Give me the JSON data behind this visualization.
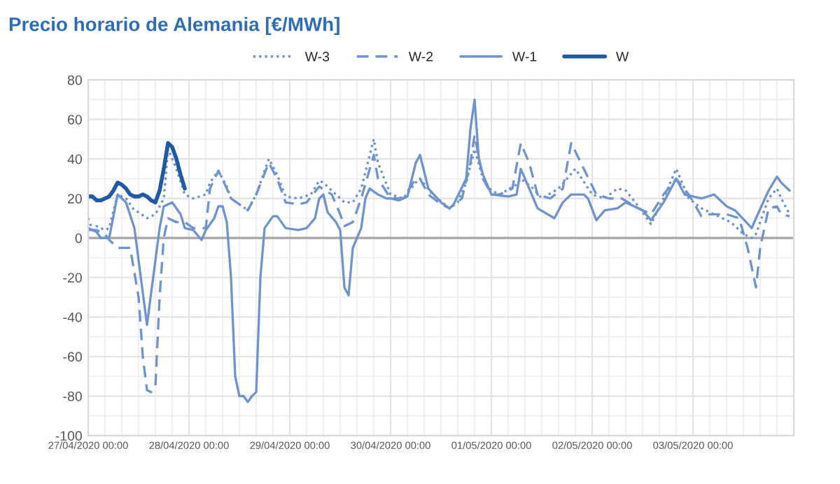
{
  "chart_data": {
    "type": "line",
    "title": "Precio horario de Alemania [€/MWh]",
    "series": [
      {
        "name": "W-3",
        "color": "#6f93cc",
        "line_style": "dotted",
        "x": [
          "2020-04-27T00:00",
          "2020-04-27T01:00",
          "2020-04-27T02:00",
          "2020-04-27T04:00",
          "2020-04-27T05:00",
          "2020-04-27T07:00",
          "2020-04-27T09:00",
          "2020-04-27T11:00",
          "2020-04-27T12:00",
          "2020-04-27T14:00",
          "2020-04-27T16:00",
          "2020-04-27T18:00",
          "2020-04-27T19:00",
          "2020-04-27T21:00",
          "2020-04-27T23:00",
          "2020-04-28T01:00",
          "2020-04-28T04:00",
          "2020-04-28T05:00",
          "2020-04-28T07:00",
          "2020-04-28T09:00",
          "2020-04-28T10:00",
          "2020-04-28T14:00",
          "2020-04-28T16:00",
          "2020-04-28T19:00",
          "2020-04-28T21:00",
          "2020-04-28T23:00",
          "2020-04-29T02:00",
          "2020-04-29T05:00",
          "2020-04-29T07:00",
          "2020-04-29T08:00",
          "2020-04-29T11:00",
          "2020-04-29T13:00",
          "2020-04-29T15:00",
          "2020-04-29T17:00",
          "2020-04-29T20:00",
          "2020-04-29T21:00",
          "2020-04-30T00:00",
          "2020-04-30T03:00",
          "2020-04-30T06:00",
          "2020-04-30T07:00",
          "2020-04-30T10:00",
          "2020-04-30T14:00",
          "2020-04-30T16:00",
          "2020-04-30T18:00",
          "2020-04-30T20:00",
          "2020-04-30T22:00",
          "2020-05-01T00:00",
          "2020-05-01T02:00",
          "2020-05-01T06:00",
          "2020-05-01T07:00",
          "2020-05-01T10:00",
          "2020-05-01T12:00",
          "2020-05-01T16:00",
          "2020-05-01T20:00",
          "2020-05-02T00:00",
          "2020-05-02T03:00",
          "2020-05-02T06:00",
          "2020-05-02T08:00",
          "2020-05-02T11:00",
          "2020-05-02T14:00",
          "2020-05-02T17:00",
          "2020-05-02T20:00",
          "2020-05-02T23:00",
          "2020-05-03T02:00",
          "2020-05-03T05:00",
          "2020-05-03T09:00",
          "2020-05-03T12:00",
          "2020-05-03T14:00",
          "2020-05-03T15:00",
          "2020-05-03T18:00",
          "2020-05-03T20:00",
          "2020-05-03T21:00",
          "2020-05-03T23:00"
        ],
        "values": [
          10,
          4,
          6,
          4,
          5,
          22,
          20,
          14,
          13,
          10,
          12,
          20,
          45,
          35,
          22,
          20,
          22,
          28,
          34,
          26,
          20,
          14,
          22,
          40,
          32,
          21,
          20,
          22,
          29,
          28,
          22,
          18,
          18,
          25,
          50,
          38,
          22,
          20,
          28,
          30,
          22,
          15,
          18,
          28,
          45,
          30,
          24,
          22,
          27,
          30,
          25,
          20,
          25,
          35,
          22,
          20,
          25,
          24,
          16,
          7,
          20,
          35,
          20,
          15,
          12,
          8,
          2,
          0,
          2,
          20,
          25,
          20,
          12
        ]
      },
      {
        "name": "W-2",
        "color": "#6f93cc",
        "line_style": "dashed",
        "x": [
          "2020-04-27T00:00",
          "2020-04-27T02:00",
          "2020-04-27T04:00",
          "2020-04-27T05:00",
          "2020-04-27T07:00",
          "2020-04-27T10:00",
          "2020-04-27T12:00",
          "2020-04-27T13:00",
          "2020-04-27T14:00",
          "2020-04-27T15:00",
          "2020-04-27T16:00",
          "2020-04-27T17:00",
          "2020-04-27T18:00",
          "2020-04-27T19:00",
          "2020-04-27T21:00",
          "2020-04-27T23:00",
          "2020-04-28T01:00",
          "2020-04-28T04:00",
          "2020-04-28T05:00",
          "2020-04-28T07:00",
          "2020-04-28T09:00",
          "2020-04-28T10:00",
          "2020-04-28T14:00",
          "2020-04-28T16:00",
          "2020-04-28T19:00",
          "2020-04-28T21:00",
          "2020-04-28T23:00",
          "2020-04-29T02:00",
          "2020-04-29T04:00",
          "2020-04-29T07:00",
          "2020-04-29T10:00",
          "2020-04-29T12:00",
          "2020-04-29T13:00",
          "2020-04-29T15:00",
          "2020-04-29T17:00",
          "2020-04-29T20:00",
          "2020-04-29T21:00",
          "2020-04-30T00:00",
          "2020-04-30T03:00",
          "2020-04-30T06:00",
          "2020-04-30T07:00",
          "2020-04-30T09:00",
          "2020-04-30T12:00",
          "2020-04-30T14:00",
          "2020-04-30T17:00",
          "2020-04-30T19:00",
          "2020-04-30T20:00",
          "2020-04-30T22:00",
          "2020-05-01T00:00",
          "2020-05-01T02:00",
          "2020-05-01T05:00",
          "2020-05-01T07:00",
          "2020-05-01T09:00",
          "2020-05-01T11:00",
          "2020-05-01T14:00",
          "2020-05-01T17:00",
          "2020-05-01T19:00",
          "2020-05-01T22:00",
          "2020-05-02T01:00",
          "2020-05-02T04:00",
          "2020-05-02T07:00",
          "2020-05-02T11:00",
          "2020-05-02T14:00",
          "2020-05-02T17:00",
          "2020-05-02T20:00",
          "2020-05-02T23:00",
          "2020-05-03T02:00",
          "2020-05-03T04:00",
          "2020-05-03T08:00",
          "2020-05-03T11:00",
          "2020-05-03T13:00",
          "2020-05-03T15:00",
          "2020-05-03T16:00",
          "2020-05-03T18:00",
          "2020-05-03T20:00",
          "2020-05-03T21:00",
          "2020-05-03T23:00"
        ],
        "values": [
          4,
          4,
          2,
          -1,
          -5,
          -5,
          -30,
          -60,
          -77,
          -78,
          -75,
          -30,
          0,
          10,
          8,
          8,
          5,
          5,
          25,
          34,
          25,
          20,
          14,
          22,
          38,
          30,
          18,
          17,
          18,
          26,
          22,
          12,
          6,
          8,
          20,
          42,
          30,
          20,
          20,
          30,
          30,
          22,
          17,
          15,
          20,
          38,
          52,
          30,
          22,
          22,
          25,
          48,
          38,
          22,
          20,
          25,
          48,
          35,
          22,
          20,
          20,
          15,
          12,
          22,
          30,
          22,
          11,
          12,
          12,
          10,
          -5,
          -25,
          -5,
          15,
          16,
          12,
          11
        ]
      },
      {
        "name": "W-1",
        "color": "#6f93cc",
        "line_style": "solid",
        "x": [
          "2020-04-27T00:00",
          "2020-04-27T02:00",
          "2020-04-27T03:00",
          "2020-04-27T05:00",
          "2020-04-27T07:00",
          "2020-04-27T09:00",
          "2020-04-27T11:00",
          "2020-04-27T14:00",
          "2020-04-27T17:00",
          "2020-04-27T18:00",
          "2020-04-27T20:00",
          "2020-04-27T22:00",
          "2020-04-27T23:00",
          "2020-04-28T01:00",
          "2020-04-28T03:00",
          "2020-04-28T04:00",
          "2020-04-28T06:00",
          "2020-04-28T07:00",
          "2020-04-28T08:00",
          "2020-04-28T09:00",
          "2020-04-28T10:00",
          "2020-04-28T11:00",
          "2020-04-28T12:00",
          "2020-04-28T13:00",
          "2020-04-28T14:00",
          "2020-04-28T15:00",
          "2020-04-28T16:00",
          "2020-04-28T17:00",
          "2020-04-28T18:00",
          "2020-04-28T20:00",
          "2020-04-28T21:00",
          "2020-04-28T22:00",
          "2020-04-28T23:00",
          "2020-04-29T02:00",
          "2020-04-29T04:00",
          "2020-04-29T06:00",
          "2020-04-29T07:00",
          "2020-04-29T08:00",
          "2020-04-29T09:00",
          "2020-04-29T11:00",
          "2020-04-29T12:00",
          "2020-04-29T13:00",
          "2020-04-29T14:00",
          "2020-04-29T15:00",
          "2020-04-29T17:00",
          "2020-04-29T18:00",
          "2020-04-29T19:00",
          "2020-04-29T21:00",
          "2020-04-29T23:00",
          "2020-04-30T00:00",
          "2020-04-30T02:00",
          "2020-04-30T04:00",
          "2020-04-30T06:00",
          "2020-04-30T07:00",
          "2020-04-30T09:00",
          "2020-04-30T12:00",
          "2020-04-30T14:00",
          "2020-04-30T15:00",
          "2020-04-30T18:00",
          "2020-04-30T19:00",
          "2020-04-30T20:00",
          "2020-04-30T21:00",
          "2020-04-30T22:00",
          "2020-05-01T00:00",
          "2020-05-01T04:00",
          "2020-05-01T06:00",
          "2020-05-01T07:00",
          "2020-05-01T09:00",
          "2020-05-01T11:00",
          "2020-05-01T15:00",
          "2020-05-01T17:00",
          "2020-05-01T19:00",
          "2020-05-01T22:00",
          "2020-05-01T23:00",
          "2020-05-02T01:00",
          "2020-05-02T03:00",
          "2020-05-02T06:00",
          "2020-05-02T08:00",
          "2020-05-02T12:00",
          "2020-05-02T14:00",
          "2020-05-02T17:00",
          "2020-05-02T20:00",
          "2020-05-02T22:00",
          "2020-05-03T00:00",
          "2020-05-03T02:00",
          "2020-05-03T05:00",
          "2020-05-03T08:00",
          "2020-05-03T10:00",
          "2020-05-03T14:00",
          "2020-05-03T15:00",
          "2020-05-03T18:00",
          "2020-05-03T20:00",
          "2020-05-03T21:00",
          "2020-05-03T23:00"
        ],
        "values": [
          5,
          3,
          0,
          0,
          22,
          18,
          5,
          -44,
          5,
          16,
          18,
          12,
          5,
          4,
          -1,
          4,
          10,
          16,
          16,
          8,
          -20,
          -70,
          -80,
          -80,
          -83,
          -80,
          -78,
          -20,
          5,
          11,
          11,
          8,
          5,
          4,
          5,
          10,
          20,
          22,
          13,
          8,
          4,
          -25,
          -29,
          -5,
          5,
          20,
          25,
          22,
          20,
          20,
          19,
          21,
          38,
          42,
          25,
          18,
          15,
          17,
          30,
          55,
          70,
          40,
          32,
          22,
          21,
          22,
          35,
          25,
          15,
          10,
          18,
          22,
          22,
          20,
          9,
          14,
          15,
          18,
          14,
          9,
          18,
          30,
          22,
          21,
          20,
          22,
          16,
          14,
          5,
          10,
          24,
          31,
          28,
          24
        ]
      },
      {
        "name": "W",
        "color": "#1f5aa6",
        "line_style": "solid",
        "x": [
          "2020-04-27T00:00",
          "2020-04-27T01:00",
          "2020-04-27T02:00",
          "2020-04-27T03:00",
          "2020-04-27T04:00",
          "2020-04-27T05:00",
          "2020-04-27T06:00",
          "2020-04-27T07:00",
          "2020-04-27T08:00",
          "2020-04-27T09:00",
          "2020-04-27T10:00",
          "2020-04-27T11:00",
          "2020-04-27T12:00",
          "2020-04-27T13:00",
          "2020-04-27T14:00",
          "2020-04-27T15:00",
          "2020-04-27T16:00",
          "2020-04-27T17:00",
          "2020-04-27T18:00",
          "2020-04-27T19:00",
          "2020-04-27T20:00",
          "2020-04-27T21:00",
          "2020-04-27T22:00",
          "2020-04-27T23:00"
        ],
        "values": [
          21,
          21,
          19,
          19,
          20,
          21,
          24,
          28,
          27,
          25,
          22,
          21,
          21,
          22,
          21,
          19,
          18,
          24,
          35,
          48,
          46,
          40,
          32,
          25
        ]
      }
    ],
    "xlim": [
      "2020-04-27T00:00",
      "2020-05-04T00:00"
    ],
    "xticks": [
      {
        "value": "2020-04-27T00:00",
        "label": "27/04/2020 00:00"
      },
      {
        "value": "2020-04-28T00:00",
        "label": "28/04/2020 00:00"
      },
      {
        "value": "2020-04-29T00:00",
        "label": "29/04/2020 00:00"
      },
      {
        "value": "2020-04-30T00:00",
        "label": "30/04/2020 00:00"
      },
      {
        "value": "2020-05-01T00:00",
        "label": "01/05/2020 00:00"
      },
      {
        "value": "2020-05-02T00:00",
        "label": "02/05/2020 00:00"
      },
      {
        "value": "2020-05-03T00:00",
        "label": "03/05/2020 00:00"
      }
    ],
    "ylim": [
      -100,
      80
    ],
    "yticks": [
      -100,
      -80,
      -60,
      -40,
      -20,
      0,
      20,
      40,
      60,
      80
    ],
    "ref_lines": [
      {
        "axis": "y",
        "value": 0,
        "color": "#aaaaaa"
      }
    ],
    "grid": true,
    "legend": "top",
    "marker": "none"
  }
}
